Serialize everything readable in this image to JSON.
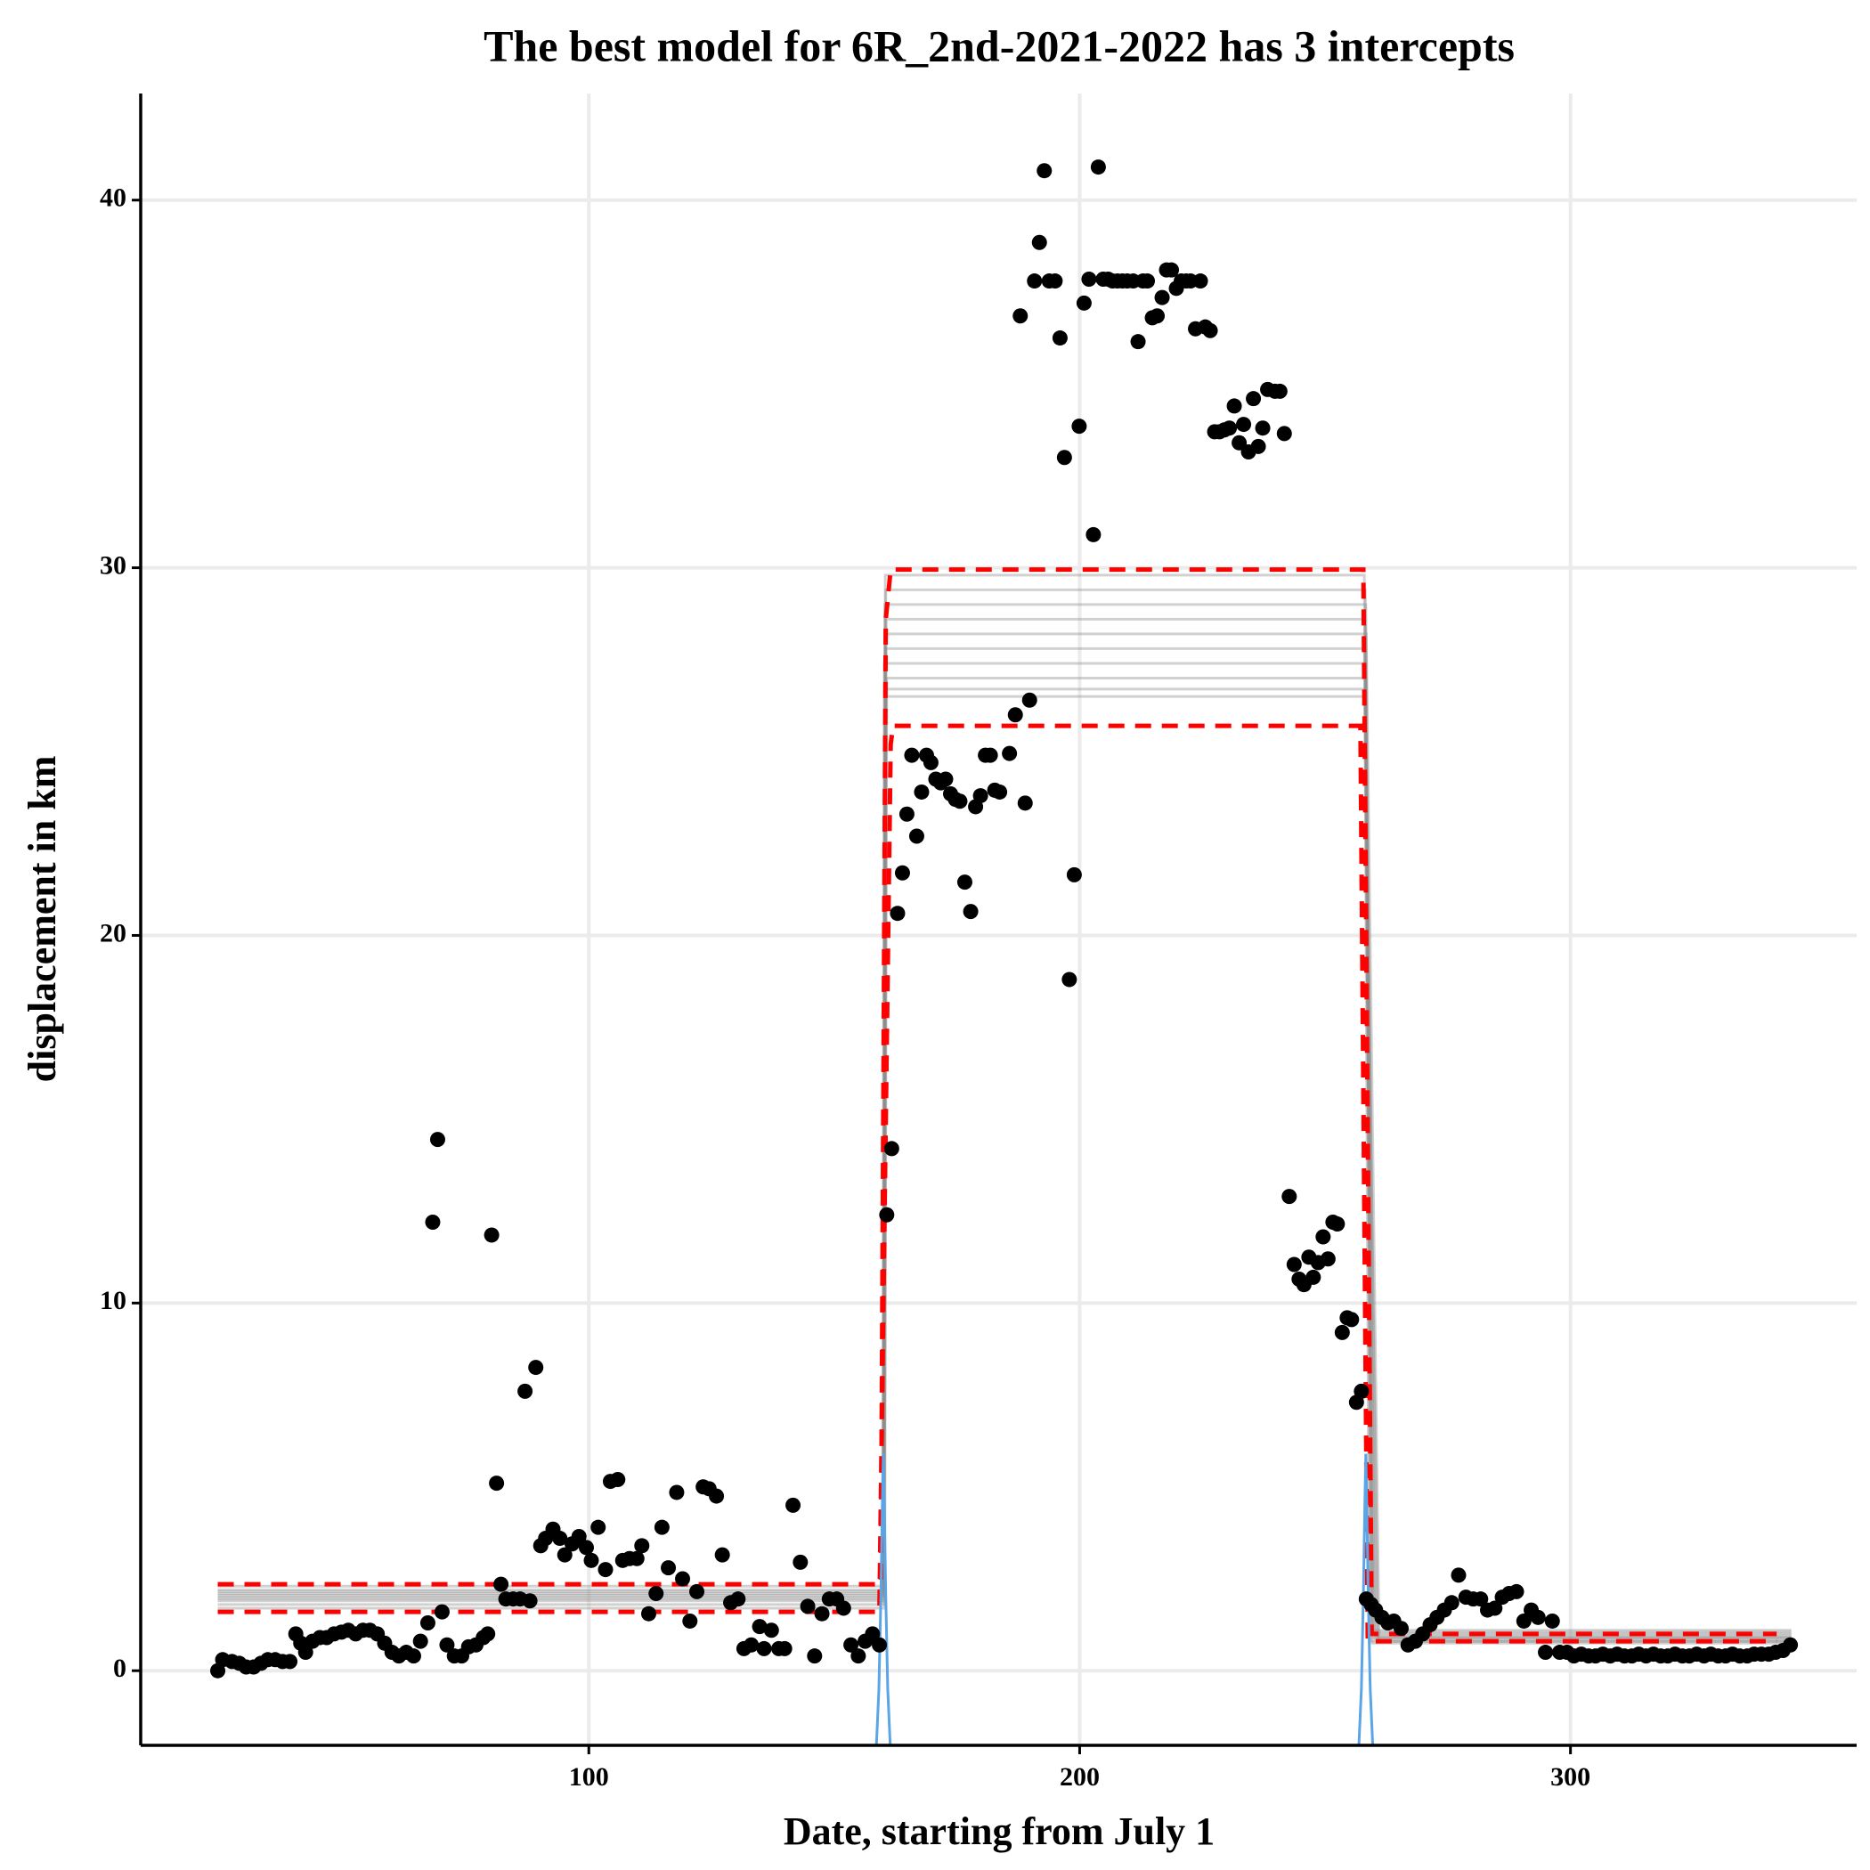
{
  "chart_data": {
    "type": "scatter",
    "title": "The best model for 6R_2nd-2021-2022 has 3 intercepts",
    "xlabel": "Date, starting from July 1",
    "ylabel": "displacement in km",
    "xlim": [
      8.7,
      358.3
    ],
    "ylim": [
      -2.03,
      42.9
    ],
    "xticks": [
      100,
      200,
      300
    ],
    "yticks": [
      0,
      10,
      20,
      30,
      40
    ],
    "grid": true,
    "points": {
      "color": "#000000",
      "x": [
        24.4,
        25.4,
        27.3,
        28.8,
        30.2,
        31.7,
        33.2,
        34.6,
        36.1,
        37.6,
        39.1,
        40.3,
        41.3,
        42.3,
        43.7,
        45.2,
        46.6,
        48.1,
        49.6,
        51.0,
        52.5,
        54.0,
        55.4,
        56.9,
        58.4,
        59.9,
        61.3,
        62.8,
        64.3,
        65.7,
        67.2,
        68.2,
        69.2,
        70.1,
        71.1,
        72.6,
        74.1,
        75.5,
        77.0,
        78.5,
        79.4,
        80.2,
        81.2,
        82.1,
        83.1,
        84.6,
        86.0,
        87.0,
        88.0,
        89.2,
        90.2,
        91.2,
        92.7,
        94.1,
        95.1,
        96.6,
        98.0,
        99.5,
        100.5,
        101.9,
        103.4,
        104.4,
        105.9,
        106.9,
        108.3,
        109.8,
        110.8,
        112.2,
        113.7,
        114.9,
        116.2,
        117.9,
        119.1,
        120.6,
        122.0,
        123.3,
        124.5,
        126.0,
        127.2,
        128.9,
        130.4,
        131.6,
        133.1,
        134.8,
        135.7,
        137.2,
        138.7,
        139.9,
        141.6,
        143.1,
        144.6,
        146.0,
        147.5,
        149.0,
        150.5,
        151.9,
        153.4,
        154.9,
        156.3,
        157.8,
        159.2,
        160.7,
        161.7,
        162.9,
        163.9,
        164.8,
        165.8,
        166.8,
        167.8,
        168.8,
        169.7,
        170.7,
        171.7,
        172.7,
        173.7,
        174.7,
        175.6,
        176.6,
        177.8,
        178.8,
        179.8,
        180.8,
        181.8,
        182.7,
        183.7,
        185.7,
        186.9,
        187.9,
        188.9,
        189.8,
        190.8,
        191.8,
        192.8,
        193.8,
        195.0,
        196.0,
        196.9,
        197.9,
        198.9,
        199.9,
        200.9,
        201.9,
        202.8,
        203.8,
        204.8,
        205.8,
        206.7,
        207.7,
        208.7,
        209.7,
        210.9,
        211.9,
        212.9,
        213.8,
        214.8,
        215.8,
        216.8,
        217.7,
        218.7,
        219.7,
        220.7,
        221.7,
        222.6,
        223.6,
        224.6,
        225.6,
        226.6,
        227.5,
        228.5,
        229.5,
        230.5,
        231.5,
        232.5,
        233.4,
        234.4,
        235.4,
        236.4,
        237.3,
        238.3,
        239.8,
        240.8,
        241.7,
        242.7,
        243.7,
        244.7,
        245.7,
        246.7,
        247.6,
        248.6,
        249.6,
        250.6,
        251.6,
        252.5,
        253.5,
        254.5,
        255.4,
        256.4,
        257.4,
        258.4,
        259.4,
        260.3,
        261.6,
        262.8,
        264.0,
        265.5,
        266.9,
        268.4,
        269.9,
        271.4,
        272.8,
        274.3,
        275.8,
        277.2,
        278.7,
        280.2,
        281.7,
        283.1,
        284.6,
        286.1,
        287.5,
        289.0,
        290.5,
        292.0,
        293.4,
        294.9,
        296.3,
        297.8,
        299.3,
        300.7,
        302.2,
        303.7,
        305.1,
        306.6,
        308.1,
        309.5,
        311.0,
        312.5,
        313.9,
        315.4,
        316.9,
        318.4,
        319.8,
        321.3,
        322.8,
        324.2,
        325.7,
        327.2,
        328.6,
        330.1,
        331.6,
        333.0,
        334.5,
        336.0,
        337.4,
        338.9,
        340.4,
        341.8,
        343.3,
        344.8
      ],
      "y": [
        0.0,
        0.3,
        0.25,
        0.2,
        0.1,
        0.1,
        0.2,
        0.3,
        0.3,
        0.25,
        0.25,
        1.0,
        0.75,
        0.5,
        0.8,
        0.9,
        0.9,
        1.0,
        1.05,
        1.1,
        1.0,
        1.1,
        1.1,
        1.0,
        0.75,
        0.5,
        0.4,
        0.5,
        0.4,
        0.8,
        1.3,
        12.2,
        14.45,
        1.6,
        0.7,
        0.4,
        0.4,
        0.65,
        0.7,
        0.9,
        1.0,
        11.85,
        5.1,
        2.35,
        1.95,
        1.95,
        1.95,
        7.6,
        1.9,
        8.25,
        3.4,
        3.6,
        3.85,
        3.6,
        3.15,
        3.45,
        3.65,
        3.35,
        3.0,
        3.9,
        2.75,
        5.15,
        5.2,
        3.0,
        3.05,
        3.05,
        3.4,
        1.55,
        2.1,
        3.9,
        2.8,
        4.85,
        2.5,
        1.35,
        2.15,
        5.0,
        4.95,
        4.75,
        3.15,
        1.85,
        1.95,
        0.6,
        0.7,
        1.2,
        0.6,
        1.1,
        0.6,
        0.6,
        4.5,
        2.95,
        1.75,
        0.4,
        1.55,
        1.95,
        1.95,
        1.7,
        0.7,
        0.4,
        0.8,
        1.0,
        0.7,
        12.4,
        14.2,
        20.6,
        21.7,
        23.3,
        24.9,
        22.7,
        23.9,
        24.9,
        24.7,
        24.25,
        24.15,
        24.25,
        23.85,
        23.7,
        23.65,
        21.45,
        20.65,
        23.5,
        23.8,
        24.9,
        24.9,
        23.95,
        23.9,
        24.95,
        26.0,
        36.85,
        23.6,
        26.4,
        37.8,
        38.85,
        40.8,
        37.8,
        37.8,
        36.25,
        33.0,
        18.8,
        21.65,
        33.85,
        37.2,
        37.85,
        30.9,
        40.9,
        37.85,
        37.85,
        37.8,
        37.8,
        37.8,
        37.8,
        37.8,
        36.15,
        37.8,
        37.8,
        36.8,
        36.85,
        37.35,
        38.1,
        38.1,
        37.6,
        37.8,
        37.8,
        37.8,
        36.5,
        37.8,
        36.55,
        36.45,
        33.7,
        33.7,
        33.75,
        33.8,
        34.4,
        33.4,
        33.9,
        33.15,
        34.6,
        33.3,
        33.8,
        34.85,
        34.8,
        34.8,
        33.65,
        12.9,
        11.05,
        10.65,
        10.5,
        11.25,
        10.7,
        11.1,
        11.8,
        11.2,
        12.2,
        12.15,
        9.2,
        9.6,
        9.55,
        7.3,
        7.6,
        1.95,
        1.8,
        1.65,
        1.45,
        1.3,
        1.35,
        1.15,
        0.7,
        0.8,
        1.0,
        1.25,
        1.45,
        1.65,
        1.85,
        2.6,
        2.0,
        1.95,
        1.95,
        1.65,
        1.7,
        2.0,
        2.1,
        2.15,
        1.35,
        1.65,
        1.45,
        0.5,
        1.35,
        0.5,
        0.5,
        0.4,
        0.45,
        0.4,
        0.4,
        0.45,
        0.4,
        0.45,
        0.4,
        0.4,
        0.45,
        0.4,
        0.45,
        0.4,
        0.4,
        0.45,
        0.4,
        0.4,
        0.45,
        0.4,
        0.45,
        0.4,
        0.4,
        0.45,
        0.4,
        0.4,
        0.45,
        0.45,
        0.45,
        0.5,
        0.55,
        0.7
      ]
    },
    "model_color": "#8c8c8c",
    "model_samples": [
      {
        "x": [
          24.4,
          160.0,
          160.4,
          258.0,
          259.0,
          345.0
        ],
        "y": [
          2.3,
          2.3,
          29.8,
          29.8,
          1.1,
          1.1
        ]
      },
      {
        "x": [
          24.4,
          160.1,
          160.5,
          258.2,
          259.5,
          345.0
        ],
        "y": [
          2.2,
          2.2,
          29.4,
          29.4,
          1.05,
          1.05
        ]
      },
      {
        "x": [
          24.4,
          159.9,
          160.3,
          258.3,
          260.0,
          345.0
        ],
        "y": [
          2.15,
          2.15,
          29.0,
          29.0,
          1.0,
          1.0
        ]
      },
      {
        "x": [
          24.4,
          160.2,
          160.6,
          258.1,
          260.5,
          345.0
        ],
        "y": [
          2.1,
          2.1,
          28.6,
          28.6,
          0.95,
          0.95
        ]
      },
      {
        "x": [
          24.4,
          160.0,
          160.4,
          258.4,
          261.0,
          345.0
        ],
        "y": [
          2.05,
          2.05,
          28.2,
          28.2,
          0.9,
          0.9
        ]
      },
      {
        "x": [
          24.4,
          160.1,
          160.5,
          258.0,
          259.8,
          345.0
        ],
        "y": [
          2.0,
          2.0,
          27.8,
          27.8,
          0.9,
          0.9
        ]
      },
      {
        "x": [
          24.4,
          159.8,
          160.2,
          258.2,
          260.2,
          345.0
        ],
        "y": [
          1.95,
          1.95,
          27.4,
          27.4,
          0.85,
          0.85
        ]
      },
      {
        "x": [
          24.4,
          160.3,
          160.7,
          258.3,
          259.3,
          345.0
        ],
        "y": [
          1.9,
          1.9,
          27.0,
          27.0,
          0.8,
          0.8
        ]
      },
      {
        "x": [
          24.4,
          160.0,
          160.4,
          258.1,
          260.8,
          345.0
        ],
        "y": [
          1.8,
          1.8,
          26.7,
          26.7,
          0.8,
          0.8
        ]
      },
      {
        "x": [
          24.4,
          160.2,
          160.6,
          258.2,
          259.6,
          345.0
        ],
        "y": [
          1.7,
          1.7,
          26.5,
          26.5,
          0.75,
          0.75
        ]
      }
    ],
    "interval_color": "#ff0000",
    "interval_lines": [
      {
        "x": [
          24.4,
          159.5,
          160.5,
          161.5,
          257.8,
          259.5,
          342.0
        ],
        "y": [
          2.35,
          2.35,
          28.6,
          29.95,
          29.95,
          1.0,
          1.0
        ]
      },
      {
        "x": [
          24.4,
          159.2,
          161.5,
          162.0,
          257.2,
          258.7,
          342.0
        ],
        "y": [
          1.6,
          1.6,
          25.2,
          25.7,
          25.7,
          0.8,
          0.8
        ]
      }
    ],
    "changepoint_color": "#5aa5e6",
    "changepoint_density": [
      {
        "x": [
          158.6,
          159.1,
          159.5,
          159.8,
          160.0,
          160.2,
          160.5,
          160.9,
          161.4
        ],
        "y": [
          -2.0,
          -0.5,
          2.0,
          4.5,
          5.9,
          4.5,
          2.0,
          -0.5,
          -2.0
        ]
      },
      {
        "x": [
          256.9,
          257.4,
          257.8,
          258.1,
          258.3,
          258.5,
          258.8,
          259.2,
          259.7
        ],
        "y": [
          -2.0,
          -0.5,
          2.0,
          4.5,
          5.9,
          4.5,
          2.0,
          -0.5,
          -2.0
        ]
      }
    ]
  }
}
